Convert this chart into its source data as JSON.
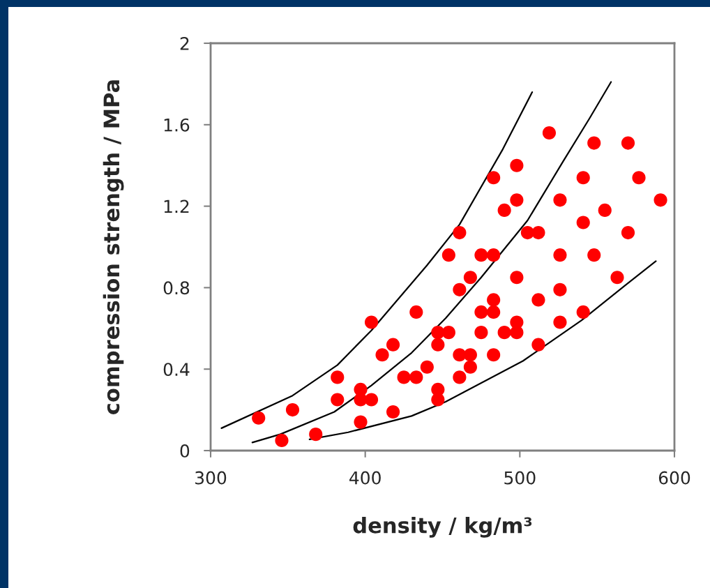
{
  "chart_data": {
    "type": "scatter",
    "xlabel": "density / kg/m³",
    "ylabel": "compression strength / MPa",
    "xlim": [
      300,
      600
    ],
    "ylim": [
      0,
      2
    ],
    "xticks": [
      300,
      400,
      500,
      600
    ],
    "yticks": [
      0,
      0.4,
      0.8,
      1.2,
      1.6,
      2
    ],
    "grid": false,
    "legend": false,
    "series": [
      {
        "color": "#ff0000",
        "marker": "circle",
        "x": [
          331,
          346,
          353,
          368,
          382,
          382,
          397,
          397,
          397,
          404,
          404,
          411,
          418,
          418,
          425,
          433,
          433,
          440,
          447,
          447,
          447,
          447,
          454,
          454,
          461,
          461,
          461,
          461,
          468,
          468,
          468,
          475,
          475,
          475,
          483,
          483,
          483,
          483,
          483,
          490,
          490,
          498,
          498,
          498,
          498,
          498,
          505,
          512,
          512,
          512,
          519,
          526,
          526,
          526,
          526,
          541,
          541,
          541,
          548,
          548,
          555,
          563,
          570,
          570,
          577,
          591
        ],
        "values": [
          0.16,
          0.05,
          0.2,
          0.08,
          0.36,
          0.25,
          0.3,
          0.25,
          0.14,
          0.25,
          0.63,
          0.47,
          0.52,
          0.19,
          0.36,
          0.36,
          0.68,
          0.41,
          0.58,
          0.52,
          0.3,
          0.25,
          0.96,
          0.58,
          0.47,
          0.36,
          0.79,
          1.07,
          0.85,
          0.47,
          0.41,
          0.96,
          0.68,
          0.58,
          1.34,
          0.96,
          0.74,
          0.68,
          0.47,
          1.18,
          0.58,
          1.4,
          1.23,
          0.85,
          0.63,
          0.58,
          1.07,
          1.07,
          0.74,
          0.52,
          1.56,
          1.23,
          0.96,
          0.79,
          0.63,
          1.34,
          1.12,
          0.68,
          1.51,
          0.96,
          1.18,
          0.85,
          1.51,
          1.07,
          1.34,
          1.23
        ]
      },
      {
        "type": "line",
        "color": "#000000",
        "marker": "none",
        "line_style": "solid",
        "x": [
          307,
          353,
          382,
          404,
          440,
          461,
          489,
          508
        ],
        "values": [
          0.11,
          0.27,
          0.42,
          0.59,
          0.91,
          1.11,
          1.48,
          1.76
        ]
      },
      {
        "type": "line",
        "color": "#000000",
        "marker": "none",
        "line_style": "solid",
        "x": [
          327,
          345,
          380,
          404,
          430,
          452,
          475,
          505,
          528,
          545,
          559
        ],
        "values": [
          0.04,
          0.08,
          0.19,
          0.32,
          0.48,
          0.65,
          0.85,
          1.13,
          1.42,
          1.63,
          1.81
        ]
      },
      {
        "type": "line",
        "color": "#000000",
        "marker": "none",
        "line_style": "solid",
        "x": [
          364,
          389,
          430,
          452,
          502,
          540,
          568,
          588
        ],
        "values": [
          0.055,
          0.09,
          0.17,
          0.24,
          0.44,
          0.64,
          0.81,
          0.93
        ]
      }
    ]
  }
}
